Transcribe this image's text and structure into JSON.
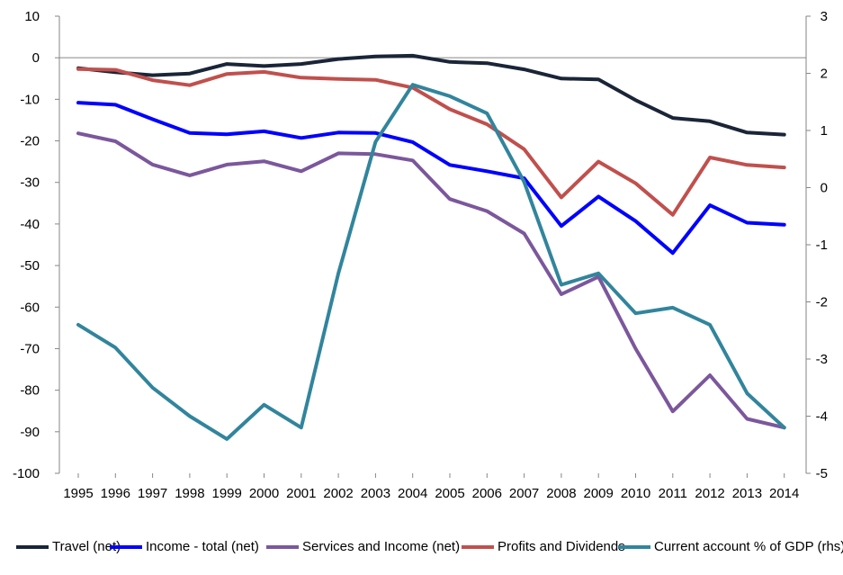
{
  "chart_data": {
    "type": "line",
    "categories": [
      "1995",
      "1996",
      "1997",
      "1998",
      "1999",
      "2000",
      "2001",
      "2002",
      "2003",
      "2004",
      "2005",
      "2006",
      "2007",
      "2008",
      "2009",
      "2010",
      "2011",
      "2012",
      "2013",
      "2014"
    ],
    "left_axis": {
      "ylim": [
        -100,
        10
      ],
      "ticks": [
        "10",
        "0",
        "-10",
        "-20",
        "-30",
        "-40",
        "-50",
        "-60",
        "-70",
        "-80",
        "-90",
        "-100"
      ]
    },
    "right_axis": {
      "ylim": [
        -5,
        3
      ],
      "ticks": [
        "3",
        "2",
        "1",
        "0",
        "-1",
        "-2",
        "-3",
        "-4",
        "-5"
      ]
    },
    "grid": false,
    "legend_position": "bottom",
    "series": [
      {
        "name": "Travel (net)",
        "axis": "left",
        "color": "#1a2538",
        "values": [
          -2.5,
          -3.5,
          -4.2,
          -3.8,
          -1.5,
          -2.0,
          -1.5,
          -0.3,
          0.3,
          0.5,
          -1.0,
          -1.3,
          -2.8,
          -5.0,
          -5.2,
          -10.2,
          -14.5,
          -15.3,
          -18.0,
          -18.5
        ]
      },
      {
        "name": "Income - total (net)",
        "axis": "left",
        "color": "#0000ff",
        "values": [
          -10.8,
          -11.3,
          -14.8,
          -18.1,
          -18.4,
          -17.7,
          -19.3,
          -18.0,
          -18.1,
          -20.3,
          -25.8,
          -27.3,
          -29.0,
          -40.5,
          -33.4,
          -39.3,
          -47.0,
          -35.5,
          -39.7,
          -40.2
        ]
      },
      {
        "name": "Services and Income (net)",
        "axis": "left",
        "color": "#7b579c",
        "values": [
          -18.2,
          -20.1,
          -25.7,
          -28.3,
          -25.7,
          -24.9,
          -27.3,
          -23.0,
          -23.2,
          -24.7,
          -34.0,
          -36.9,
          -42.3,
          -56.9,
          -52.7,
          -70.0,
          -85.1,
          -76.4,
          -86.9,
          -89.0
        ]
      },
      {
        "name": "Profits and Dividends",
        "axis": "left",
        "color": "#c0504d",
        "values": [
          -2.7,
          -2.9,
          -5.4,
          -6.6,
          -3.9,
          -3.4,
          -4.8,
          -5.1,
          -5.3,
          -7.2,
          -12.4,
          -16.0,
          -22.0,
          -33.6,
          -25.0,
          -30.2,
          -37.8,
          -24.0,
          -25.8,
          -26.4
        ]
      },
      {
        "name": "Current account % of GDP (rhs)",
        "axis": "right",
        "color": "#31859c",
        "values": [
          -2.4,
          -2.8,
          -3.5,
          -4.0,
          -4.4,
          -3.8,
          -4.2,
          -1.5,
          0.8,
          1.8,
          1.6,
          1.3,
          0.1,
          -1.7,
          -1.5,
          -2.2,
          -2.1,
          -2.4,
          -3.6,
          -4.2
        ]
      }
    ]
  }
}
